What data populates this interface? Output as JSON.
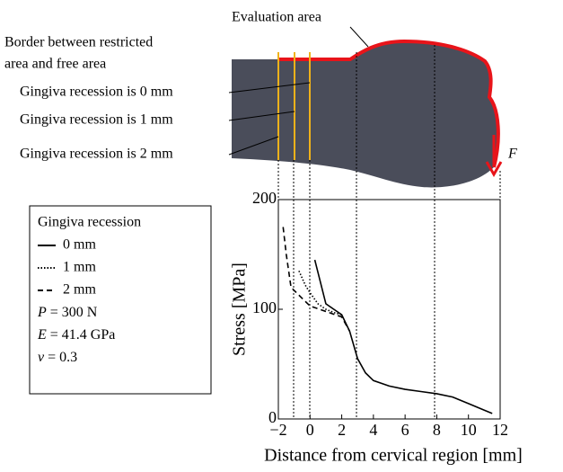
{
  "chart_data": {
    "type": "line",
    "xlabel": "Distance from cervical region [mm]",
    "ylabel": "Stress [MPa]",
    "xlim": [
      -2,
      12
    ],
    "ylim": [
      0,
      200
    ],
    "xticks": [
      {
        "value": -2,
        "label": "−2"
      },
      0,
      2,
      4,
      6,
      8,
      10,
      12
    ],
    "yticks": [
      0,
      100,
      200
    ],
    "legend_title": "Gingiva recession",
    "legend_notes": [
      {
        "symbol": "P",
        "text": " = 300 N"
      },
      {
        "symbol": "E",
        "text": " = 41.4 GPa"
      },
      {
        "symbol": "ν",
        "text": " = 0.3"
      }
    ],
    "annotations": [
      "Evaluation area",
      "Border between restricted",
      "area and free area",
      "Gingiva recession is 0 mm",
      "Gingiva recession is 1 mm",
      "Gingiva recession is 2 mm",
      "F"
    ],
    "series": [
      {
        "name": "0 mm",
        "color": "#000000",
        "dash": "solid",
        "x": [
          0.3,
          1,
          1.5,
          2,
          2.5,
          3,
          3.5,
          4,
          5,
          6,
          7,
          8,
          9,
          10,
          11,
          11.5
        ],
        "values": [
          145,
          105,
          100,
          95,
          80,
          55,
          42,
          35,
          30,
          27,
          25,
          23,
          20,
          14,
          8,
          5
        ]
      },
      {
        "name": "1 mm",
        "color": "#000000",
        "dash": "dotted",
        "x": [
          -0.7,
          -0.3,
          0,
          0.5,
          1,
          1.5,
          2
        ],
        "values": [
          135,
          122,
          115,
          105,
          100,
          97,
          95
        ]
      },
      {
        "name": "2 mm",
        "color": "#000000",
        "dash": "dashed",
        "x": [
          -1.7,
          -1.5,
          -1.2,
          -0.5,
          0,
          1,
          2,
          2.5
        ],
        "values": [
          175,
          150,
          120,
          110,
          103,
          98,
          93,
          80
        ]
      }
    ]
  }
}
